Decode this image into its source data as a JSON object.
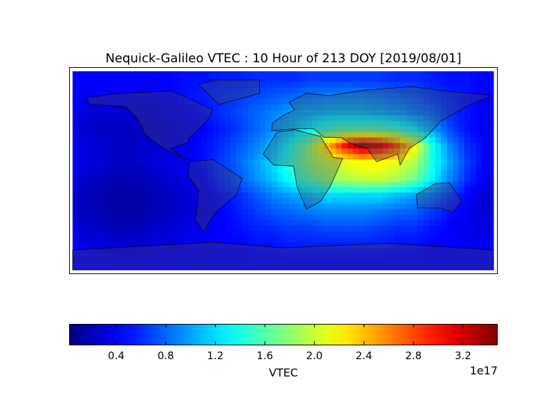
{
  "chart_data": {
    "type": "heatmap",
    "title": "Nequick-Galileo VTEC : 10 Hour of 213 DOY [2019/08/01]",
    "colormap": "jet",
    "colorbar": {
      "label": "VTEC",
      "multiplier": "1e17",
      "range": [
        0.02,
        3.48
      ],
      "ticks": [
        0.4,
        0.8,
        1.2,
        1.6,
        2.0,
        2.4,
        2.8,
        3.2
      ],
      "tick_labels": [
        "0.4",
        "0.8",
        "1.2",
        "1.6",
        "2.0",
        "2.4",
        "2.8",
        "3.2"
      ],
      "orientation": "horizontal"
    },
    "lon_range": [
      -180,
      180
    ],
    "lat_range": [
      -90,
      90
    ],
    "units_note": "values in units of 1e17",
    "lon_centers": [
      -172.5,
      -157.5,
      -142.5,
      -127.5,
      -112.5,
      -97.5,
      -82.5,
      -67.5,
      -52.5,
      -37.5,
      -22.5,
      -7.5,
      7.5,
      22.5,
      37.5,
      52.5,
      67.5,
      82.5,
      97.5,
      112.5,
      127.5,
      142.5,
      157.5,
      172.5
    ],
    "lat_centers": [
      82.5,
      67.5,
      52.5,
      37.5,
      22.5,
      7.5,
      -7.5,
      -22.5,
      -37.5,
      -52.5,
      -67.5,
      -82.5
    ],
    "values": [
      [
        0.45,
        0.45,
        0.45,
        0.45,
        0.45,
        0.45,
        0.5,
        0.5,
        0.55,
        0.55,
        0.6,
        0.6,
        0.6,
        0.65,
        0.65,
        0.65,
        0.65,
        0.65,
        0.6,
        0.6,
        0.55,
        0.5,
        0.5,
        0.45
      ],
      [
        0.4,
        0.4,
        0.4,
        0.4,
        0.4,
        0.45,
        0.5,
        0.55,
        0.6,
        0.65,
        0.7,
        0.75,
        0.8,
        0.85,
        0.9,
        0.9,
        0.9,
        0.85,
        0.8,
        0.75,
        0.65,
        0.55,
        0.5,
        0.45
      ],
      [
        0.35,
        0.3,
        0.3,
        0.3,
        0.35,
        0.4,
        0.45,
        0.5,
        0.6,
        0.7,
        0.8,
        0.9,
        1.0,
        1.05,
        1.1,
        1.1,
        1.1,
        1.05,
        1.0,
        0.9,
        0.8,
        0.6,
        0.5,
        0.4
      ],
      [
        0.3,
        0.25,
        0.25,
        0.25,
        0.3,
        0.35,
        0.4,
        0.45,
        0.55,
        0.65,
        0.8,
        0.95,
        1.1,
        1.3,
        1.5,
        1.6,
        1.6,
        1.6,
        1.5,
        1.3,
        1.0,
        0.7,
        0.5,
        0.4
      ],
      [
        0.35,
        0.3,
        0.25,
        0.25,
        0.3,
        0.35,
        0.4,
        0.5,
        0.6,
        0.75,
        0.9,
        1.1,
        1.4,
        1.8,
        2.4,
        3.0,
        3.4,
        3.2,
        2.8,
        2.2,
        1.4,
        0.9,
        0.6,
        0.45
      ],
      [
        0.35,
        0.3,
        0.25,
        0.25,
        0.3,
        0.35,
        0.4,
        0.5,
        0.65,
        0.8,
        1.0,
        1.2,
        1.5,
        1.8,
        2.0,
        2.1,
        2.2,
        2.2,
        2.1,
        1.9,
        1.4,
        1.0,
        0.65,
        0.45
      ],
      [
        0.3,
        0.25,
        0.2,
        0.2,
        0.25,
        0.3,
        0.35,
        0.45,
        0.6,
        0.75,
        0.95,
        1.15,
        1.4,
        1.6,
        1.8,
        1.9,
        2.0,
        2.0,
        1.9,
        1.7,
        1.3,
        0.9,
        0.6,
        0.4
      ],
      [
        0.25,
        0.2,
        0.15,
        0.15,
        0.2,
        0.25,
        0.3,
        0.4,
        0.5,
        0.6,
        0.75,
        0.9,
        1.0,
        1.1,
        1.2,
        1.2,
        1.2,
        1.2,
        1.1,
        1.0,
        0.85,
        0.65,
        0.45,
        0.3
      ],
      [
        0.25,
        0.2,
        0.15,
        0.15,
        0.2,
        0.25,
        0.3,
        0.35,
        0.45,
        0.55,
        0.65,
        0.75,
        0.8,
        0.85,
        0.9,
        0.9,
        0.9,
        0.85,
        0.8,
        0.75,
        0.65,
        0.5,
        0.4,
        0.3
      ],
      [
        0.3,
        0.25,
        0.2,
        0.2,
        0.25,
        0.3,
        0.35,
        0.4,
        0.45,
        0.5,
        0.55,
        0.6,
        0.65,
        0.65,
        0.7,
        0.7,
        0.7,
        0.65,
        0.6,
        0.6,
        0.5,
        0.45,
        0.4,
        0.35
      ],
      [
        0.35,
        0.35,
        0.3,
        0.3,
        0.35,
        0.35,
        0.4,
        0.4,
        0.45,
        0.45,
        0.5,
        0.5,
        0.55,
        0.55,
        0.55,
        0.55,
        0.55,
        0.55,
        0.5,
        0.5,
        0.45,
        0.45,
        0.4,
        0.4
      ],
      [
        0.45,
        0.45,
        0.45,
        0.45,
        0.45,
        0.45,
        0.45,
        0.45,
        0.45,
        0.45,
        0.45,
        0.45,
        0.45,
        0.45,
        0.45,
        0.45,
        0.45,
        0.45,
        0.45,
        0.45,
        0.45,
        0.45,
        0.45,
        0.45
      ]
    ]
  }
}
